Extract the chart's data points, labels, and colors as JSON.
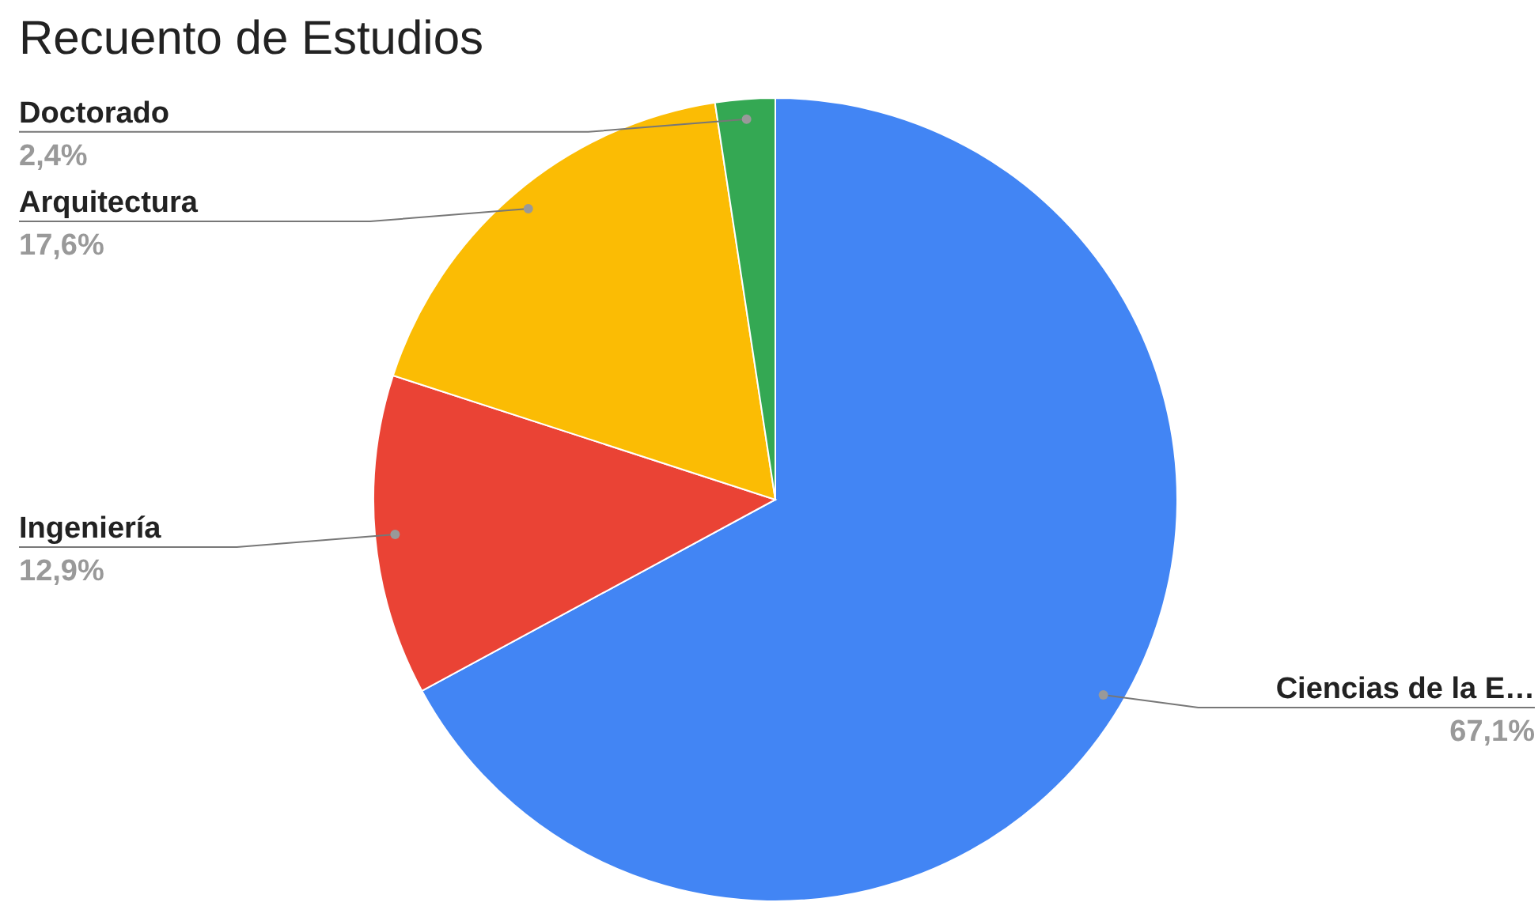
{
  "chart_data": {
    "type": "pie",
    "title": "Recuento de Estudios",
    "categories": [
      "Ciencias de la E…",
      "Ingeniería",
      "Arquitectura",
      "Doctorado"
    ],
    "values": [
      67.1,
      12.9,
      17.6,
      2.4
    ],
    "value_labels": [
      "67,1%",
      "12,9%",
      "17,6%",
      "2,4%"
    ],
    "colors": [
      "#4285f4",
      "#ea4335",
      "#fbbc04",
      "#34a853"
    ],
    "legend": false
  }
}
